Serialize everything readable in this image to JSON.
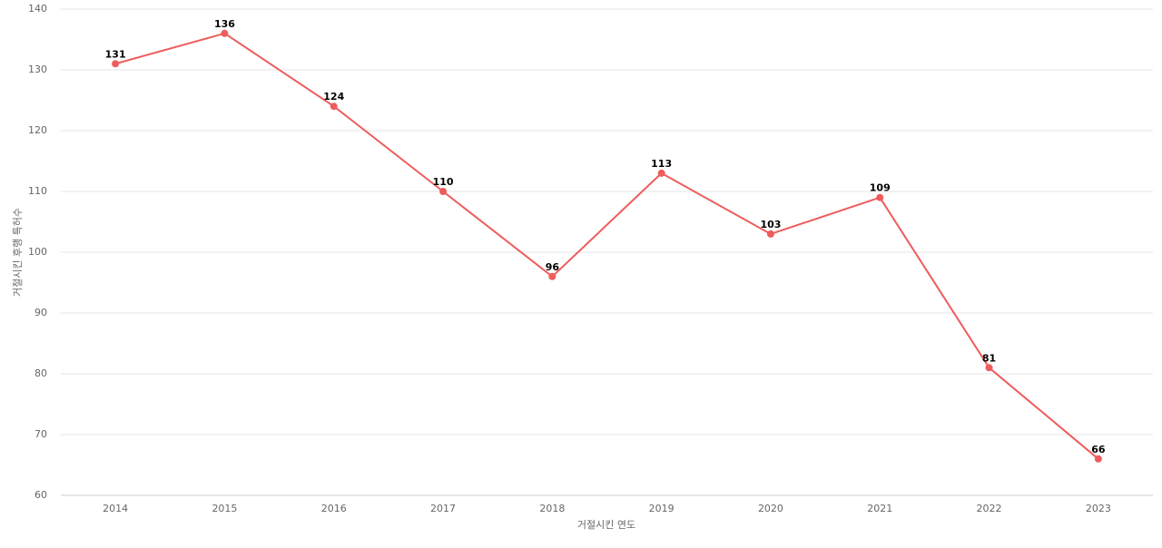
{
  "chart_data": {
    "type": "line",
    "x_label": "거절시킨 연도",
    "y_label": "거절시킨 후행 특허수",
    "categories": [
      "2014",
      "2015",
      "2016",
      "2017",
      "2018",
      "2019",
      "2020",
      "2021",
      "2022",
      "2023"
    ],
    "values": [
      131,
      136,
      124,
      110,
      96,
      113,
      103,
      109,
      81,
      66
    ],
    "color": "#ee5c5c",
    "ylim": [
      60,
      140
    ],
    "yticks": [
      60,
      70,
      80,
      90,
      100,
      110,
      120,
      130,
      140
    ],
    "grid": true
  }
}
